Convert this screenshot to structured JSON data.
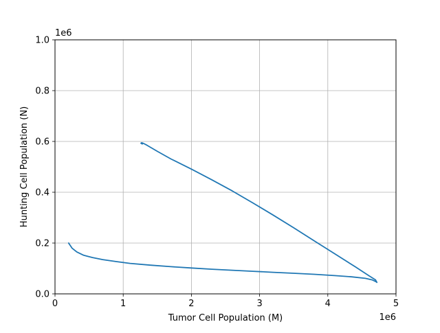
{
  "chart_data": {
    "type": "line",
    "title": "",
    "xlabel": "Tumor Cell Population (M)",
    "ylabel": "Hunting Cell Population (N)",
    "x_offset_label": "1e6",
    "y_offset_label": "1e6",
    "xlim": [
      0,
      5000000
    ],
    "ylim": [
      0,
      1000000
    ],
    "x_ticks": [
      0,
      1000000,
      2000000,
      3000000,
      4000000,
      5000000
    ],
    "x_tick_labels": [
      "0",
      "1",
      "2",
      "3",
      "4",
      "5"
    ],
    "y_ticks": [
      0,
      200000,
      400000,
      600000,
      800000,
      1000000
    ],
    "y_tick_labels": [
      "0.0",
      "0.2",
      "0.4",
      "0.6",
      "0.8",
      "1.0"
    ],
    "grid": true,
    "line_color": "#1f77b4",
    "series": [
      {
        "x": [
          200000,
          250000,
          320000,
          420000,
          550000,
          700000,
          900000,
          1100000,
          1400000,
          1700000,
          2000000,
          2300000,
          2600000,
          2900000,
          3200000,
          3500000,
          3800000,
          4100000,
          4350000,
          4550000,
          4650000,
          4700000,
          4720000,
          4720000,
          4700000,
          4600000,
          4400000,
          4100000,
          3800000,
          3500000,
          3200000,
          2900000,
          2600000,
          2300000,
          2000000,
          1700000,
          1500000,
          1350000,
          1300000,
          1270000,
          1260000,
          1280000
        ],
        "y": [
          200000,
          180000,
          165000,
          152000,
          143000,
          135000,
          127000,
          120000,
          113000,
          107000,
          102000,
          97000,
          93000,
          89000,
          85000,
          81000,
          77000,
          72000,
          67000,
          61000,
          55000,
          49000,
          46000,
          45000,
          55000,
          72000,
          107000,
          158000,
          209000,
          260000,
          310000,
          358000,
          405000,
          449000,
          491000,
          531000,
          561000,
          585000,
          592000,
          595000,
          593000,
          590000
        ]
      }
    ]
  }
}
